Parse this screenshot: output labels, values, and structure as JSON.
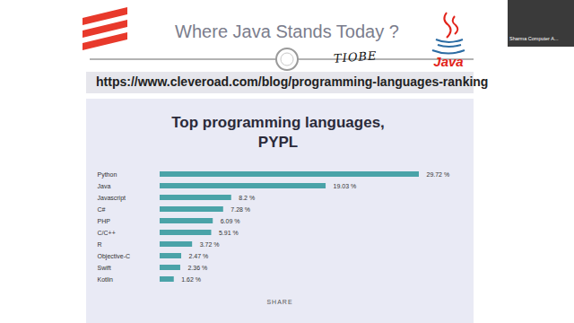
{
  "slide": {
    "title": "Where Java Stands Today ?",
    "url": "https://www.cleveroad.com/blog/programming-languages-ranking",
    "handwritten_note": "TIOBE",
    "logo_text": "Java",
    "participant_label": "Sharma Computer A..."
  },
  "chart_data": {
    "type": "bar",
    "orientation": "horizontal",
    "title": "Top programming languages, PYPL",
    "annotations": [
      "SHARE"
    ],
    "categories": [
      "Python",
      "Java",
      "Javascript",
      "C#",
      "PHP",
      "C/C++",
      "R",
      "Objective-C",
      "Swift",
      "Kotlin"
    ],
    "values": [
      29.72,
      19.03,
      8.2,
      7.28,
      6.09,
      5.91,
      3.72,
      2.47,
      2.36,
      1.62
    ],
    "value_labels": [
      "29.72 %",
      "19.03 %",
      "8.2 %",
      "7.28 %",
      "6.09 %",
      "5.91 %",
      "3.72 %",
      "2.47 %",
      "2.36 %",
      "1.62 %"
    ],
    "data_labels": true,
    "tick_labels": "y",
    "grid": false,
    "color": "#4aa3a8"
  }
}
